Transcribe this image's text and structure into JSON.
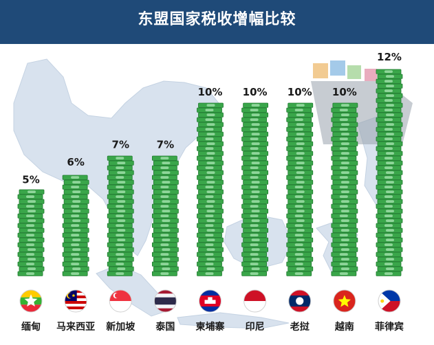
{
  "title": "东盟国家税收增幅比较",
  "colors": {
    "header": "#1f4a78",
    "map_land": "#d8e2ee",
    "map_land_edge": "#c4d2e2",
    "bill_dark": "#1d7a2c",
    "bill_mid": "#3aa64a",
    "bill_light": "#8fd59a",
    "value_text": "#1a1a1a",
    "label_text": "#1a1a1a"
  },
  "chart_data": {
    "type": "bar",
    "categories": [
      "缅甸",
      "马来西亚",
      "新加坡",
      "泰国",
      "柬埔寨",
      "印尼",
      "老挝",
      "越南",
      "菲律宾"
    ],
    "values": [
      5,
      6,
      7,
      7,
      10,
      10,
      10,
      10,
      12
    ],
    "value_labels": [
      "5%",
      "6%",
      "7%",
      "7%",
      "10%",
      "10%",
      "10%",
      "10%",
      "12%"
    ],
    "ylim": [
      0,
      12
    ],
    "grid": false,
    "legend": "none",
    "category_icons": [
      "myanmar-flag",
      "malaysia-flag",
      "singapore-flag",
      "thailand-flag",
      "cambodia-flag",
      "indonesia-flag",
      "laos-flag",
      "vietnam-flag",
      "philippines-flag"
    ]
  }
}
